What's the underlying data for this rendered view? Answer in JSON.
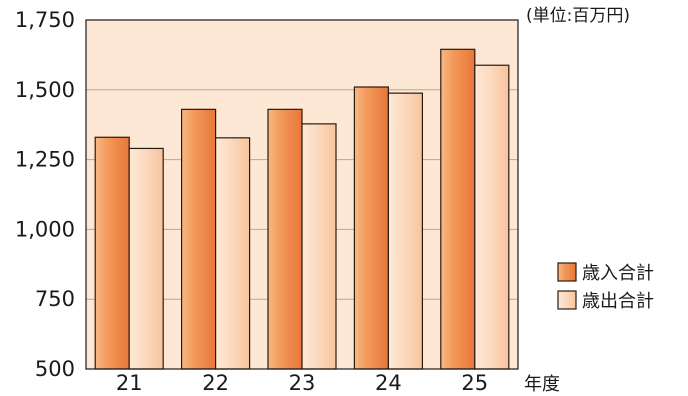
{
  "chart_data": {
    "type": "bar",
    "unit_label": "(単位:百万円)",
    "xlabel": "年度",
    "ylabel": "",
    "categories": [
      "21",
      "22",
      "23",
      "24",
      "25"
    ],
    "ylim": [
      500,
      1750
    ],
    "yticks": [
      500,
      750,
      1000,
      1250,
      1500,
      1750
    ],
    "ytick_labels": [
      "500",
      "750",
      "1,000",
      "1,250",
      "1,500",
      "1,750"
    ],
    "grid": true,
    "legend_position": "right",
    "series": [
      {
        "name": "歳入合計",
        "values": [
          1330,
          1430,
          1430,
          1510,
          1645
        ],
        "color": "#f4a064"
      },
      {
        "name": "歳出合計",
        "values": [
          1290,
          1328,
          1378,
          1488,
          1588
        ],
        "color": "#fcd7b8"
      }
    ],
    "colors": {
      "plot_bg": "#fde8d5",
      "grid": "#b8a89a",
      "border": "#1a1a1a"
    }
  }
}
